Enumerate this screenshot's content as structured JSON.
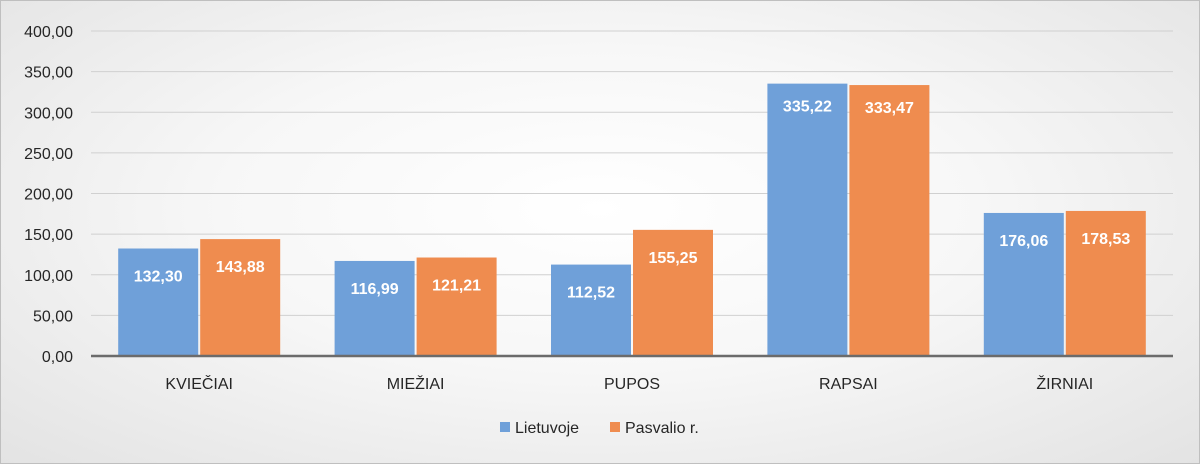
{
  "chart_data": {
    "type": "bar",
    "categories": [
      "KVIEČIAI",
      "MIEŽIAI",
      "PUPOS",
      "RAPSAI",
      "ŽIRNIAI"
    ],
    "series": [
      {
        "name": "Lietuvoje",
        "color": "#6fa0d9",
        "values": [
          132.3,
          116.99,
          112.52,
          335.22,
          176.06
        ],
        "labels": [
          "132,30",
          "116,99",
          "112,52",
          "335,22",
          "176,06"
        ]
      },
      {
        "name": "Pasvalio r.",
        "color": "#ef8c4f",
        "values": [
          143.88,
          121.21,
          155.25,
          333.47,
          178.53
        ],
        "labels": [
          "143,88",
          "121,21",
          "155,25",
          "333,47",
          "178,53"
        ]
      }
    ],
    "ylim": [
      0,
      400
    ],
    "yticks": [
      0,
      50,
      100,
      150,
      200,
      250,
      300,
      350,
      400
    ],
    "ytick_labels": [
      "0,00",
      "50,00",
      "100,00",
      "150,00",
      "200,00",
      "250,00",
      "300,00",
      "350,00",
      "400,00"
    ],
    "grid": true,
    "legend": "bottom"
  }
}
